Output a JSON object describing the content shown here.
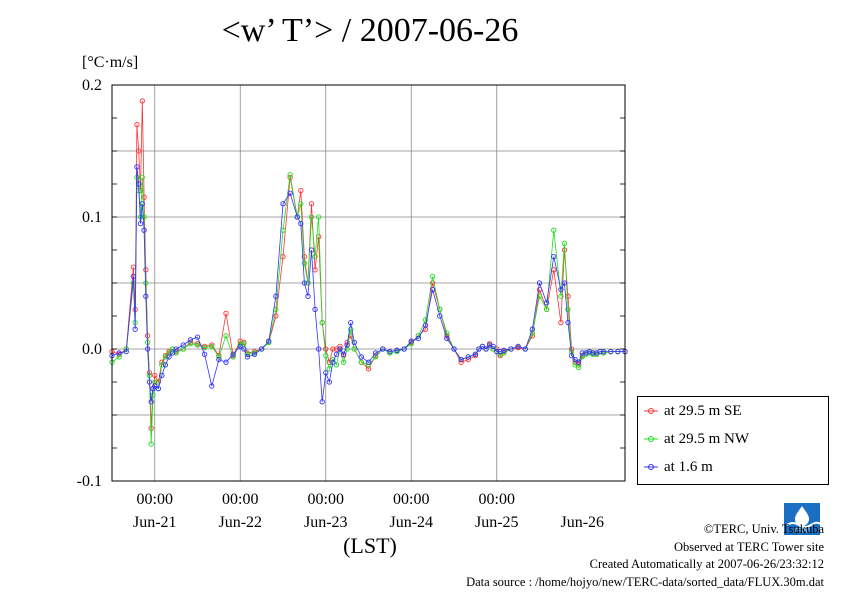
{
  "title": "<w’ T’> / 2007-06-26",
  "y_unit": "[°C·m/s]",
  "x_unit": "(LST)",
  "credits": [
    "©TERC, Univ. Tsukuba",
    "Observed at TERC Tower site",
    "Created Automatically at 2007-06-26/23:32:12",
    "Data source : /home/hojyo/new/TERC-data/sorted_data/FLUX.30m.dat"
  ],
  "logo_text": "TERC",
  "colors": {
    "se": "#ff3333",
    "nw": "#22dd22",
    "low": "#3333ff",
    "grid": "#888888"
  },
  "chart_data": {
    "type": "line",
    "title": "<w’ T’> / 2007-06-26",
    "ylabel": "[°C·m/s]",
    "xlabel": "(LST)",
    "ylim": [
      -0.1,
      0.2
    ],
    "yticks": [
      -0.1,
      0.0,
      0.1,
      0.2
    ],
    "ytick_labels": [
      "-0.1",
      "0.0",
      "0.1",
      "0.2"
    ],
    "xlim": [
      0,
      144
    ],
    "x_units": "hours since 2007-06-20 12:00 LST",
    "x_ticks": [
      12,
      36,
      60,
      84,
      108
    ],
    "x_tick_labels": [
      "00:00",
      "00:00",
      "00:00",
      "00:00",
      "00:00"
    ],
    "day_labels": [
      {
        "x": 12,
        "label": "Jun-21"
      },
      {
        "x": 36,
        "label": "Jun-22"
      },
      {
        "x": 60,
        "label": "Jun-23"
      },
      {
        "x": 84,
        "label": "Jun-24"
      },
      {
        "x": 108,
        "label": "Jun-25"
      },
      {
        "x": 132,
        "label": "Jun-26"
      }
    ],
    "grid": true,
    "legend_position": "right",
    "series": [
      {
        "name": "at 29.5 m SE",
        "color": "#ff3333",
        "x": [
          0,
          2,
          4,
          6,
          6.5,
          7,
          7.5,
          8,
          8.5,
          9,
          9.5,
          10,
          10.5,
          11,
          11.5,
          12,
          13,
          14,
          15,
          16,
          17,
          18,
          20,
          22,
          24,
          26,
          28,
          30,
          32,
          34,
          36,
          37,
          38,
          40,
          42,
          44,
          46,
          48,
          50,
          52,
          53,
          54,
          55,
          56,
          57,
          58,
          59,
          60,
          61,
          62,
          63,
          64,
          65,
          66,
          67,
          68,
          70,
          72,
          74,
          76,
          78,
          80,
          82,
          84,
          86,
          88,
          90,
          92,
          94,
          96,
          98,
          100,
          102,
          103,
          104,
          105,
          106,
          107,
          108,
          109,
          110,
          112,
          114,
          116,
          118,
          120,
          122,
          124,
          126,
          127,
          128,
          129,
          130,
          131,
          132,
          133,
          134,
          135,
          136,
          137,
          138,
          140,
          142,
          144
        ],
        "y": [
          -0.002,
          -0.004,
          0.0,
          0.062,
          0.03,
          0.17,
          0.15,
          0.12,
          0.188,
          0.115,
          0.06,
          0.01,
          -0.018,
          -0.06,
          -0.03,
          -0.02,
          -0.025,
          -0.01,
          -0.005,
          -0.002,
          0.0,
          -0.002,
          0.0,
          0.005,
          0.004,
          0.002,
          0.003,
          -0.005,
          0.027,
          -0.005,
          0.006,
          0.005,
          -0.003,
          -0.002,
          0.0,
          0.005,
          0.025,
          0.07,
          0.13,
          0.1,
          0.12,
          0.07,
          0.05,
          0.11,
          0.06,
          0.085,
          0.02,
          0.0,
          -0.01,
          0.0,
          0.0,
          0.002,
          -0.005,
          0.005,
          0.01,
          0.0,
          -0.01,
          -0.015,
          -0.005,
          0.0,
          -0.002,
          -0.001,
          0.0,
          0.005,
          0.01,
          0.015,
          0.05,
          0.03,
          0.01,
          0.0,
          -0.01,
          -0.008,
          -0.005,
          0.0,
          0.002,
          0.0,
          0.004,
          0.0,
          0.0,
          -0.005,
          -0.002,
          0.0,
          0.001,
          0.0,
          0.01,
          0.045,
          0.03,
          0.06,
          0.02,
          0.075,
          0.04,
          0.0,
          -0.01,
          -0.012,
          -0.005,
          -0.003,
          -0.002,
          -0.003,
          -0.004,
          -0.002,
          -0.003,
          -0.002,
          -0.002,
          -0.002
        ],
        "note": "values approximated from figure"
      },
      {
        "name": "at 29.5 m NW",
        "color": "#22dd22",
        "x": [
          0,
          2,
          4,
          6,
          6.5,
          7,
          7.5,
          8,
          8.5,
          9,
          9.5,
          10,
          10.5,
          11,
          11.5,
          12,
          13,
          14,
          15,
          16,
          17,
          18,
          20,
          22,
          24,
          26,
          28,
          30,
          32,
          34,
          36,
          37,
          38,
          40,
          42,
          44,
          46,
          48,
          50,
          52,
          53,
          54,
          55,
          56,
          57,
          58,
          59,
          60,
          61,
          62,
          63,
          64,
          65,
          66,
          67,
          68,
          70,
          72,
          74,
          76,
          78,
          80,
          82,
          84,
          86,
          88,
          90,
          92,
          94,
          96,
          98,
          100,
          102,
          103,
          104,
          105,
          106,
          107,
          108,
          109,
          110,
          112,
          114,
          116,
          118,
          120,
          122,
          124,
          126,
          127,
          128,
          129,
          130,
          131,
          132,
          133,
          134,
          135,
          136,
          137,
          138,
          140,
          142,
          144
        ],
        "y": [
          -0.01,
          -0.006,
          0.0,
          0.05,
          0.02,
          0.13,
          0.12,
          0.1,
          0.13,
          0.1,
          0.05,
          0.005,
          -0.02,
          -0.072,
          -0.035,
          -0.025,
          -0.03,
          -0.012,
          -0.006,
          -0.003,
          0.0,
          -0.003,
          0.0,
          0.004,
          0.003,
          0.001,
          0.002,
          -0.006,
          0.01,
          -0.006,
          0.004,
          0.004,
          -0.004,
          -0.003,
          0.0,
          0.005,
          0.03,
          0.09,
          0.132,
          0.1,
          0.11,
          0.065,
          0.05,
          0.1,
          0.07,
          0.1,
          0.02,
          -0.005,
          -0.015,
          -0.008,
          -0.012,
          0.0,
          -0.01,
          0.0,
          0.015,
          0.0,
          -0.01,
          -0.012,
          -0.006,
          0.0,
          -0.003,
          -0.002,
          0.0,
          0.004,
          0.01,
          0.022,
          0.055,
          0.03,
          0.012,
          0.0,
          -0.008,
          -0.006,
          -0.004,
          0.0,
          0.002,
          0.0,
          0.003,
          0.0,
          -0.002,
          -0.004,
          -0.003,
          0.0,
          0.002,
          0.0,
          0.012,
          0.04,
          0.03,
          0.09,
          0.04,
          0.08,
          0.03,
          -0.002,
          -0.012,
          -0.014,
          -0.006,
          -0.004,
          -0.003,
          -0.004,
          -0.004,
          -0.002,
          -0.003,
          -0.002,
          -0.002,
          -0.002
        ],
        "note": "values approximated from figure"
      },
      {
        "name": "at 1.6 m",
        "color": "#3333ff",
        "x": [
          0,
          2,
          4,
          6,
          6.5,
          7,
          7.5,
          8,
          8.5,
          9,
          9.5,
          10,
          10.5,
          11,
          11.5,
          12,
          13,
          14,
          15,
          16,
          17,
          18,
          20,
          22,
          24,
          26,
          28,
          30,
          32,
          34,
          36,
          37,
          38,
          40,
          42,
          44,
          46,
          48,
          50,
          52,
          53,
          54,
          55,
          56,
          57,
          58,
          59,
          60,
          61,
          62,
          63,
          64,
          65,
          66,
          67,
          68,
          70,
          72,
          74,
          76,
          78,
          80,
          82,
          84,
          86,
          88,
          90,
          92,
          94,
          96,
          98,
          100,
          102,
          103,
          104,
          105,
          106,
          107,
          108,
          109,
          110,
          112,
          114,
          116,
          118,
          120,
          122,
          124,
          126,
          127,
          128,
          129,
          130,
          131,
          132,
          133,
          134,
          135,
          136,
          137,
          138,
          140,
          142,
          144
        ],
        "y": [
          -0.005,
          -0.003,
          -0.002,
          0.055,
          0.015,
          0.138,
          0.125,
          0.095,
          0.11,
          0.09,
          0.04,
          0.0,
          -0.025,
          -0.04,
          -0.03,
          -0.028,
          -0.03,
          -0.02,
          -0.012,
          -0.006,
          -0.003,
          0.0,
          0.003,
          0.007,
          0.009,
          -0.004,
          -0.028,
          -0.008,
          -0.01,
          -0.004,
          0.002,
          0.0,
          -0.006,
          -0.004,
          0.0,
          0.006,
          0.04,
          0.11,
          0.118,
          0.1,
          0.095,
          0.05,
          0.04,
          0.075,
          0.03,
          0.0,
          -0.04,
          -0.018,
          -0.025,
          -0.01,
          -0.004,
          0.0,
          -0.004,
          0.003,
          0.02,
          0.005,
          -0.006,
          -0.01,
          -0.003,
          0.0,
          -0.002,
          -0.001,
          0.0,
          0.006,
          0.008,
          0.018,
          0.045,
          0.025,
          0.008,
          0.0,
          -0.008,
          -0.006,
          -0.004,
          0.0,
          0.002,
          0.0,
          0.003,
          0.002,
          -0.002,
          -0.002,
          -0.001,
          0.0,
          0.002,
          0.0,
          0.015,
          0.05,
          0.035,
          0.07,
          0.045,
          0.05,
          0.02,
          -0.005,
          -0.008,
          -0.01,
          -0.003,
          -0.003,
          -0.002,
          -0.003,
          -0.003,
          -0.002,
          -0.002,
          -0.002,
          -0.002,
          -0.002
        ],
        "note": "values approximated from figure"
      }
    ]
  }
}
